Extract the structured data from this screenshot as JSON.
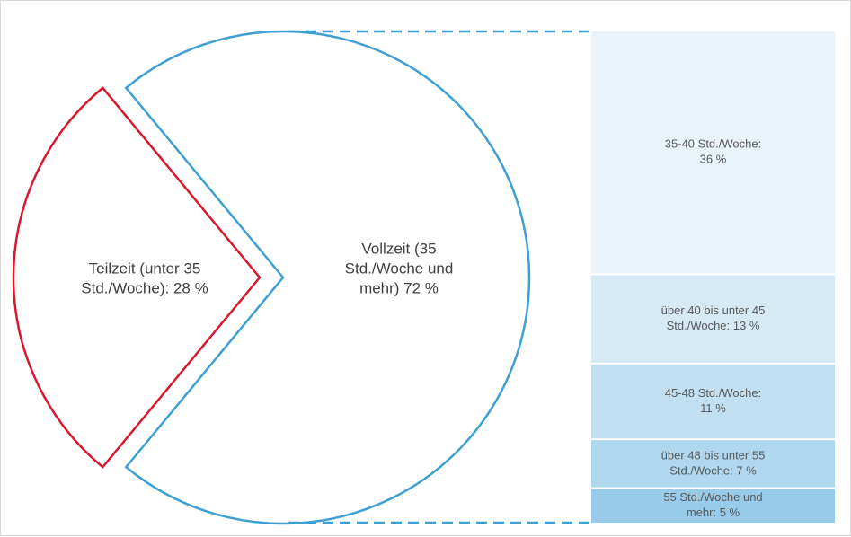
{
  "chart_data": {
    "type": "bar-of-pie",
    "pie": {
      "slices": [
        {
          "label_lines": [
            "Teilzeit (unter 35",
            "Std./Woche): 28 %"
          ],
          "value": 28,
          "outline": "#d9182d"
        },
        {
          "label_lines": [
            "Vollzeit (35",
            "Std./Woche und",
            "mehr) 72 %"
          ],
          "value": 72,
          "outline": "#3d9fd4"
        }
      ]
    },
    "breakdown": {
      "of_slice": "Vollzeit",
      "segments": [
        {
          "label_lines": [
            "35-40 Std./Woche:",
            "36 %"
          ],
          "value": 36,
          "color": "#e9f3fa"
        },
        {
          "label_lines": [
            "über 40 bis unter 45",
            "Std./Woche: 13 %"
          ],
          "value": 13,
          "color": "#d6eaf6"
        },
        {
          "label_lines": [
            "45-48 Std./Woche:",
            "11 %"
          ],
          "value": 11,
          "color": "#c2e0f1"
        },
        {
          "label_lines": [
            "über 48 bis unter 55",
            "Std./Woche: 7 %"
          ],
          "value": 7,
          "color": "#afd7ee"
        },
        {
          "label_lines": [
            "55 Std./Woche und",
            "mehr: 5 %"
          ],
          "value": 5,
          "color": "#97cbe9"
        }
      ]
    },
    "connector_color": "#3d9fd4"
  }
}
